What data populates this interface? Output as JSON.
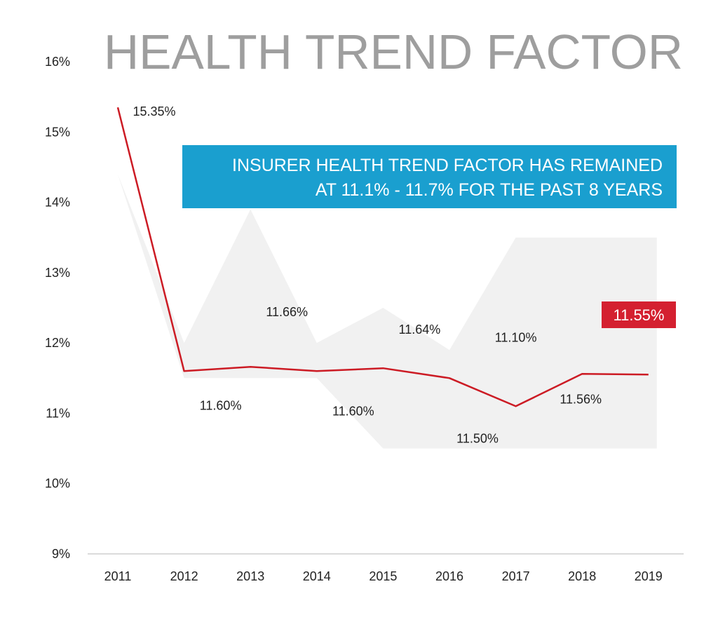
{
  "chart_data": {
    "type": "line",
    "title": "HEALTH TREND FACTOR",
    "subtitle": "",
    "xlabel": "",
    "ylabel": "",
    "categories": [
      "2011",
      "2012",
      "2013",
      "2014",
      "2015",
      "2016",
      "2017",
      "2018",
      "2019"
    ],
    "series": [
      {
        "values": [
          15.35,
          11.6,
          11.66,
          11.6,
          11.64,
          11.5,
          11.1,
          11.56,
          11.55
        ]
      }
    ],
    "data_labels": [
      "15.35%",
      "11.60%",
      "11.66%",
      "11.60%",
      "11.64%",
      "11.50%",
      "11.10%",
      "11.56%",
      "11.55%"
    ],
    "band": {
      "upper": [
        14.4,
        12.0,
        13.9,
        12.0,
        12.5,
        11.9,
        13.5,
        13.5,
        13.5
      ],
      "lower": [
        14.4,
        11.5,
        11.5,
        11.5,
        10.5,
        10.5,
        10.5,
        10.5,
        10.5
      ]
    },
    "y_ticks": [
      "9%",
      "10%",
      "11%",
      "12%",
      "13%",
      "14%",
      "15%",
      "16%"
    ],
    "ylim": [
      9,
      16
    ],
    "grid": false,
    "callout": {
      "line1": "INSURER HEALTH TREND FACTOR HAS REMAINED",
      "line2": "AT 11.1% - 11.7% FOR THE PAST 8 YEARS"
    },
    "highlight_label": "11.55%"
  },
  "colors": {
    "line": "#cc1b24",
    "title": "#9e9e9e",
    "band": "#f1f1f1",
    "callout": "#1a9fcf",
    "badge": "#d42030",
    "axis": "#cfcfcf",
    "text": "#222222"
  }
}
